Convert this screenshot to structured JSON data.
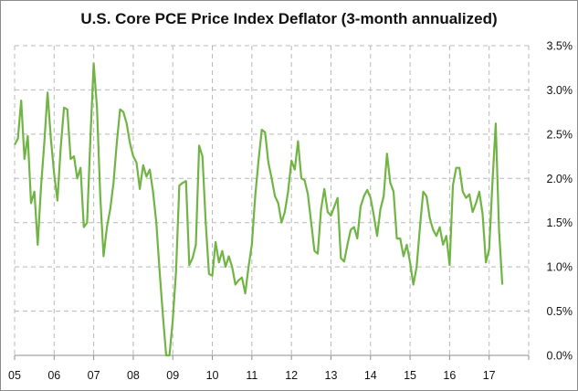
{
  "chart_data": {
    "type": "line",
    "title": "U.S. Core PCE Price Index Deflator (3-month annualized)",
    "xlabel": "",
    "ylabel": "",
    "y_axis_position": "right",
    "ylim": [
      0.0,
      3.5
    ],
    "xlim": [
      2005.0,
      2018.0
    ],
    "grid": "dashed, both axes",
    "legend": "none",
    "line_color": "#70b444",
    "x_tick_labels": [
      "05",
      "06",
      "07",
      "08",
      "09",
      "10",
      "11",
      "12",
      "13",
      "14",
      "15",
      "16",
      "17"
    ],
    "y_tick_labels": [
      "0.0%",
      "0.5%",
      "1.0%",
      "1.5%",
      "2.0%",
      "2.5%",
      "3.0%",
      "3.5%"
    ],
    "y_tick_values": [
      0.0,
      0.5,
      1.0,
      1.5,
      2.0,
      2.5,
      3.0,
      3.5
    ],
    "series": [
      {
        "name": "Core PCE 3-month annualized (%)",
        "x_start": "2005-01",
        "frequency": "monthly",
        "values": [
          2.38,
          2.45,
          2.88,
          2.22,
          2.48,
          1.72,
          1.85,
          1.25,
          1.9,
          2.4,
          2.97,
          2.45,
          2.05,
          1.75,
          2.35,
          2.8,
          2.78,
          2.22,
          2.25,
          2.0,
          2.12,
          1.45,
          1.5,
          2.45,
          3.3,
          2.8,
          1.8,
          1.12,
          1.45,
          1.65,
          1.95,
          2.4,
          2.78,
          2.75,
          2.62,
          2.4,
          2.25,
          2.18,
          1.88,
          2.15,
          2.02,
          2.1,
          1.85,
          1.5,
          0.95,
          0.45,
          0.0,
          0.0,
          0.4,
          0.95,
          1.92,
          1.95,
          1.97,
          1.02,
          1.1,
          1.25,
          2.37,
          2.25,
          1.5,
          0.92,
          0.9,
          1.28,
          1.05,
          1.18,
          1.0,
          1.12,
          1.0,
          0.8,
          0.85,
          0.88,
          0.7,
          1.0,
          1.25,
          1.8,
          2.2,
          2.55,
          2.52,
          2.18,
          2.0,
          1.8,
          1.72,
          1.5,
          1.62,
          1.85,
          2.2,
          2.1,
          2.42,
          2.0,
          1.98,
          1.82,
          1.5,
          1.18,
          1.15,
          1.65,
          1.88,
          1.62,
          1.58,
          1.68,
          1.78,
          1.1,
          1.06,
          1.25,
          1.42,
          1.45,
          1.32,
          1.68,
          1.8,
          1.87,
          1.78,
          1.58,
          1.35,
          1.65,
          1.8,
          2.28,
          1.95,
          1.85,
          1.32,
          1.32,
          1.12,
          1.25,
          1.05,
          0.8,
          1.0,
          1.45,
          1.85,
          1.8,
          1.55,
          1.42,
          1.35,
          1.45,
          1.25,
          1.35,
          1.02,
          1.92,
          2.12,
          2.12,
          1.85,
          1.78,
          1.82,
          1.62,
          1.72,
          1.85,
          1.6,
          1.05,
          1.2,
          1.95,
          2.62,
          1.42,
          0.8
        ]
      }
    ]
  }
}
